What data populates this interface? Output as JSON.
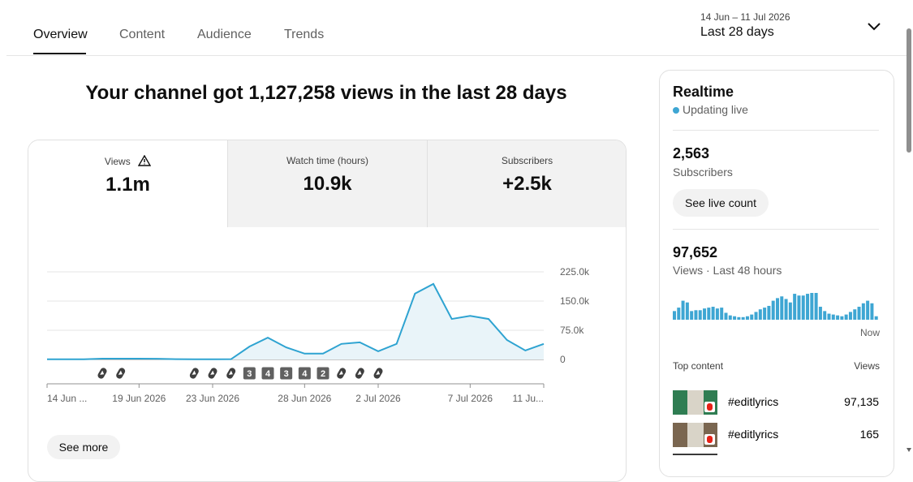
{
  "tabs": [
    "Overview",
    "Content",
    "Audience",
    "Trends"
  ],
  "date_range": {
    "range": "14 Jun – 11 Jul 2026",
    "label": "Last 28 days"
  },
  "headline": "Your channel got 1,127,258 views in the last 28 days",
  "metrics": [
    {
      "label": "Views",
      "value": "1.1m"
    },
    {
      "label": "Watch time (hours)",
      "value": "10.9k"
    },
    {
      "label": "Subscribers",
      "value": "+2.5k"
    }
  ],
  "chart": {
    "type": "line",
    "color": "#2ea3d1",
    "categories": [
      "14 Jun ...",
      null,
      null,
      null,
      null,
      "19 Jun 2026",
      null,
      null,
      null,
      "23 Jun 2026",
      null,
      null,
      null,
      null,
      "28 Jun 2026",
      null,
      null,
      null,
      "2 Jul 2026",
      null,
      null,
      null,
      null,
      "7 Jul 2026",
      null,
      null,
      null,
      "11 Ju..."
    ],
    "values": [
      500,
      500,
      600,
      2000,
      2000,
      2000,
      1800,
      800,
      600,
      600,
      700,
      33000,
      56000,
      31000,
      15000,
      15000,
      40000,
      44000,
      21000,
      40000,
      169000,
      194000,
      104000,
      112000,
      104000,
      50000,
      23000,
      40000
    ],
    "ylim": [
      0,
      225000
    ],
    "yticks": [
      0,
      {
        "value": 75000,
        "label": "75.0k"
      },
      {
        "value": 150000,
        "label": "150.0k"
      },
      {
        "value": 225000,
        "label": "225.0k"
      }
    ],
    "markers": [
      null,
      null,
      null,
      null,
      null,
      null,
      null,
      null,
      null,
      null,
      null,
      3,
      4,
      3,
      4,
      2,
      null,
      null,
      null,
      null,
      null,
      null,
      null,
      null,
      null,
      null,
      null,
      null
    ]
  },
  "see_more": "See more",
  "realtime": {
    "title": "Realtime",
    "status": "Updating live",
    "subscribers": {
      "value": "2,563",
      "label": "Subscribers"
    },
    "button": "See live count",
    "views": {
      "value": "97,652",
      "label": "Views · Last 48 hours"
    },
    "bars": [
      10,
      14,
      22,
      20,
      10,
      11,
      11,
      13,
      14,
      15,
      13,
      14,
      8,
      5,
      4,
      3,
      3,
      4,
      6,
      9,
      12,
      14,
      16,
      22,
      25,
      27,
      24,
      20,
      30,
      28,
      28,
      30,
      31,
      31,
      15,
      10,
      7,
      6,
      5,
      4,
      6,
      9,
      12,
      15,
      19,
      22,
      19,
      4
    ],
    "bars_end_label": "Now",
    "top_content": {
      "header": "Top content",
      "views_header": "Views",
      "rows": [
        {
          "title": "#editlyrics",
          "views": "97,135"
        },
        {
          "title": "#editlyrics",
          "views": "165"
        }
      ]
    }
  }
}
